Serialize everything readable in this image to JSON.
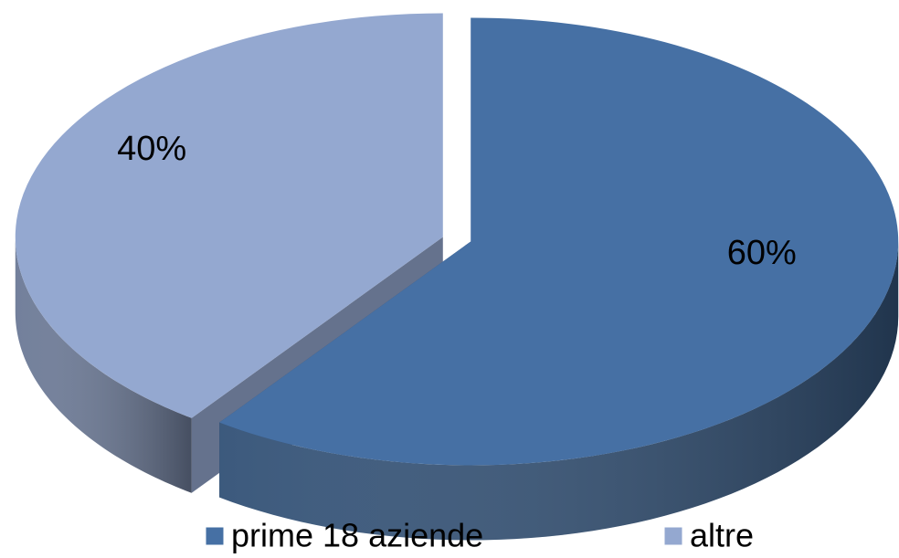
{
  "chart_data": {
    "type": "pie",
    "categories": [
      "prime 18 aziende",
      "altre"
    ],
    "values": [
      60,
      40
    ],
    "value_labels": [
      "60%",
      "40%"
    ],
    "colors": [
      "#4670a4",
      "#94a8d0"
    ],
    "legend": "bottom"
  }
}
